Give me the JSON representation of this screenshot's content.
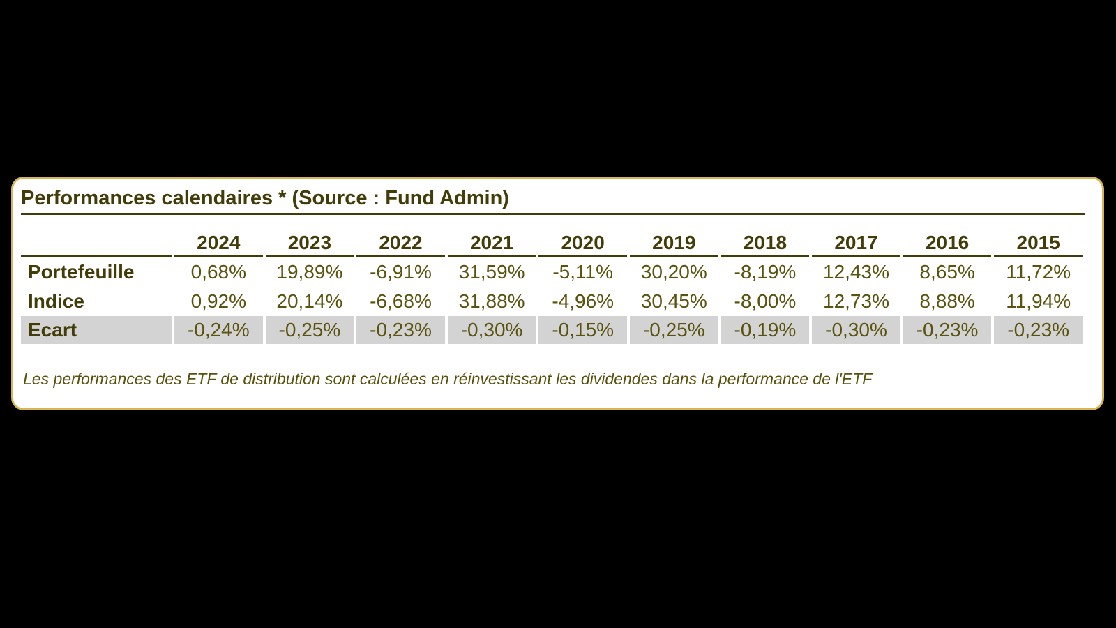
{
  "page": {
    "background_color": "#000000"
  },
  "card": {
    "title": "Performances calendaires * (Source : Fund Admin)",
    "border_color": "#d9b455",
    "background_color": "#ffffff",
    "footnote": "Les performances des ETF de distribution sont calculées en réinvestissant les dividendes dans la performance de l'ETF"
  },
  "table": {
    "text_color": "#5a520e",
    "heading_color": "#433c08",
    "highlight_color": "#d3d3d3",
    "years": [
      "2024",
      "2023",
      "2022",
      "2021",
      "2020",
      "2019",
      "2018",
      "2017",
      "2016",
      "2015"
    ],
    "rows": [
      {
        "label": "Portefeuille",
        "values": [
          "0,68%",
          "19,89%",
          "-6,91%",
          "31,59%",
          "-5,11%",
          "30,20%",
          "-8,19%",
          "12,43%",
          "8,65%",
          "11,72%"
        ]
      },
      {
        "label": "Indice",
        "values": [
          "0,92%",
          "20,14%",
          "-6,68%",
          "31,88%",
          "-4,96%",
          "30,45%",
          "-8,00%",
          "12,73%",
          "8,88%",
          "11,94%"
        ]
      },
      {
        "label": "Ecart",
        "highlighted": true,
        "values": [
          "-0,24%",
          "-0,25%",
          "-0,23%",
          "-0,30%",
          "-0,15%",
          "-0,25%",
          "-0,19%",
          "-0,30%",
          "-0,23%",
          "-0,23%"
        ]
      }
    ]
  }
}
